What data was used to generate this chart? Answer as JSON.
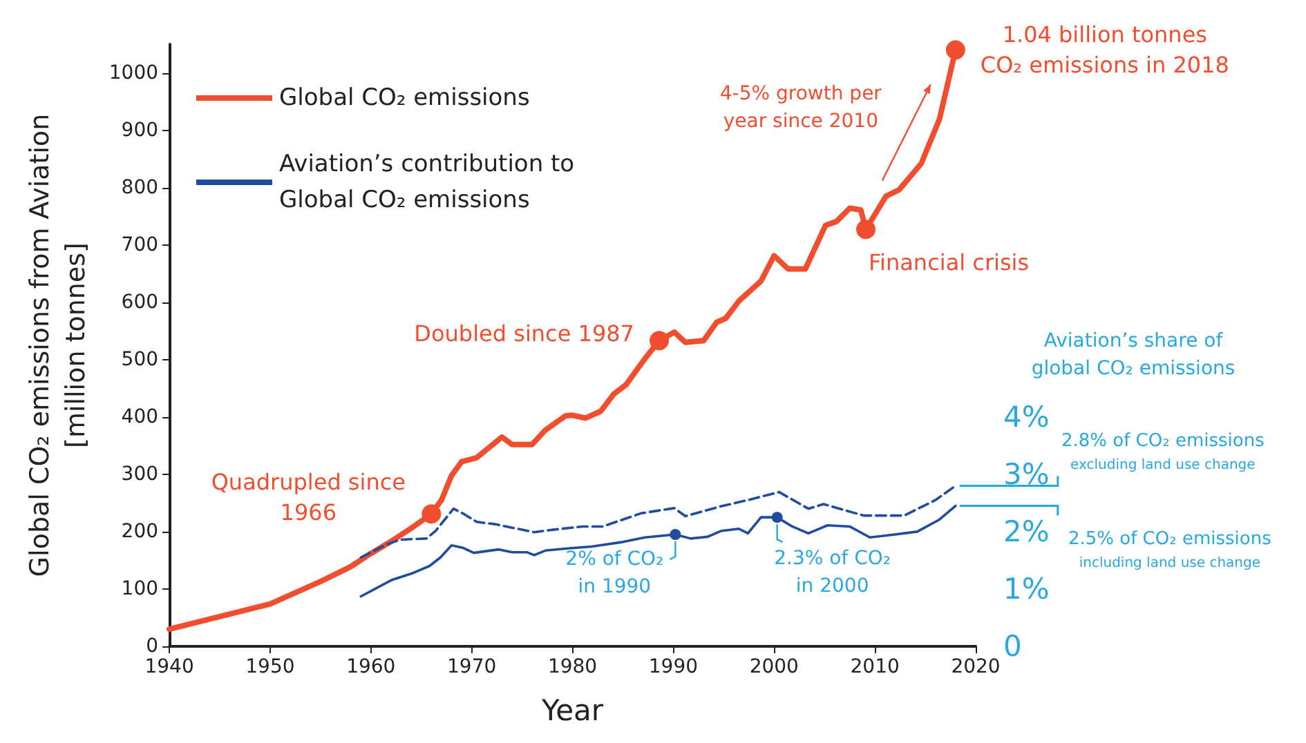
{
  "chart_data": {
    "type": "line",
    "xlabel": "Year",
    "ylabel": "Global CO₂ emissions from Aviation\n[million tonnes]",
    "y2label": "Aviation’s share of\nglobal CO₂ emissions",
    "xlim": [
      1940,
      2020
    ],
    "xticks": [
      1940,
      1950,
      1960,
      1970,
      1980,
      1990,
      2000,
      2010,
      2020
    ],
    "ylim": [
      0,
      1050
    ],
    "yticks": [
      0,
      100,
      200,
      300,
      400,
      500,
      600,
      700,
      800,
      900,
      1000
    ],
    "y2lim": [
      0,
      10.5
    ],
    "y2ticks": [
      0,
      {
        "value": 1,
        "label": "1%"
      },
      {
        "value": 2,
        "label": "2%"
      },
      {
        "value": 3,
        "label": "3%"
      },
      {
        "value": 4,
        "label": "4%"
      }
    ],
    "legend": "top left",
    "marker": "none",
    "line_style": "solid",
    "series": [
      {
        "name": "Global CO₂ emissions",
        "color": "#f04e2f",
        "x": [
          1940,
          1950,
          1955,
          1958,
          1960,
          1962,
          1964,
          1966,
          1967,
          1968,
          1969,
          1970.5,
          1973,
          1974,
          1976,
          1977.3,
          1979.3,
          1980,
          1981.3,
          1982.8,
          1984.1,
          1985.3,
          1987.2,
          1988.6,
          1990.1,
          1991.2,
          1993,
          1994.3,
          1995.2,
          1996.5,
          1998.7,
          2000,
          2001.4,
          2003.1,
          2005.1,
          2006.2,
          2007.5,
          2008.6,
          2009.1,
          2011.1,
          2012.4,
          2014.6,
          2016.4,
          2018
        ],
        "values": [
          30,
          74,
          113,
          139,
          162,
          183,
          206,
          231,
          255,
          298,
          322,
          329,
          365,
          352,
          352,
          377,
          402,
          403,
          398,
          410,
          440,
          456,
          502,
          533,
          548,
          530,
          533,
          565,
          572,
          602,
          637,
          681,
          658,
          658,
          734,
          741,
          764,
          761,
          727,
          785,
          796,
          842,
          919,
          1040
        ]
      },
      {
        "name": "Aviation’s contribution to\nGlobal CO₂ emissions",
        "color": "#1f4c9e",
        "axis": "y2",
        "x": [
          1959,
          1962.1,
          1964.2,
          1965.8,
          1966.9,
          1968,
          1969.1,
          1970.2,
          1972.7,
          1974,
          1975.5,
          1976.2,
          1977.3,
          1979.7,
          1981.9,
          1985,
          1987.2,
          1990.2,
          1991.7,
          1993.4,
          1994.7,
          1996.5,
          1997.4,
          1998.7,
          2000.3,
          2001.8,
          2003.4,
          2005.3,
          2007.5,
          2009.5,
          2012,
          2014.2,
          2016.4,
          2018
        ],
        "values": [
          0.87,
          1.16,
          1.28,
          1.4,
          1.55,
          1.76,
          1.72,
          1.63,
          1.69,
          1.64,
          1.64,
          1.59,
          1.67,
          1.71,
          1.74,
          1.82,
          1.9,
          1.95,
          1.88,
          1.91,
          2.01,
          2.05,
          1.97,
          2.25,
          2.25,
          2.09,
          1.97,
          2.11,
          2.09,
          1.9,
          1.95,
          2.0,
          2.21,
          2.45
        ]
      },
      {
        "color": "#1f4c9e",
        "axis": "y2",
        "line_style": "dashed",
        "x": [
          1959,
          1961.6,
          1962.9,
          1965.5,
          1966.4,
          1968.2,
          1969.1,
          1970.5,
          1972.3,
          1976.2,
          1977.9,
          1981,
          1983,
          1986.8,
          1990.1,
          1991.2,
          1994.7,
          1997.4,
          2000.5,
          2003.4,
          2004.9,
          2008.9,
          2012.9,
          2016,
          2018
        ],
        "values": [
          1.55,
          1.78,
          1.86,
          1.88,
          2.01,
          2.4,
          2.32,
          2.17,
          2.13,
          1.99,
          2.03,
          2.09,
          2.09,
          2.32,
          2.41,
          2.27,
          2.44,
          2.55,
          2.69,
          2.4,
          2.48,
          2.28,
          2.28,
          2.55,
          2.8
        ]
      }
    ],
    "annotations": [
      {
        "text": "Quadrupled since\n1966",
        "x": 1966,
        "y": 231
      },
      {
        "text": "Doubled since 1987",
        "x": 1988.6,
        "y": 533
      },
      {
        "text": "Financial crisis",
        "x": 2009.1,
        "y": 727
      },
      {
        "text": "1.04 billion tonnes\nCO₂ emissions in 2018",
        "x": 2018,
        "y": 1040
      },
      "4-5% growth per\nyear since 2010",
      {
        "text": "2% of CO₂\nin 1990",
        "x": 1990.2,
        "y": 195
      },
      {
        "text": "2.3% of CO₂\nin 2000",
        "x": 2000.3,
        "y": 225
      },
      {
        "text": "2.8% of CO₂ emissions\nexcluding land use change",
        "x": 2018,
        "y": 280
      },
      {
        "text": "2.5% of CO₂ emissions\nincluding land use change",
        "x": 2018,
        "y": 245
      }
    ]
  }
}
